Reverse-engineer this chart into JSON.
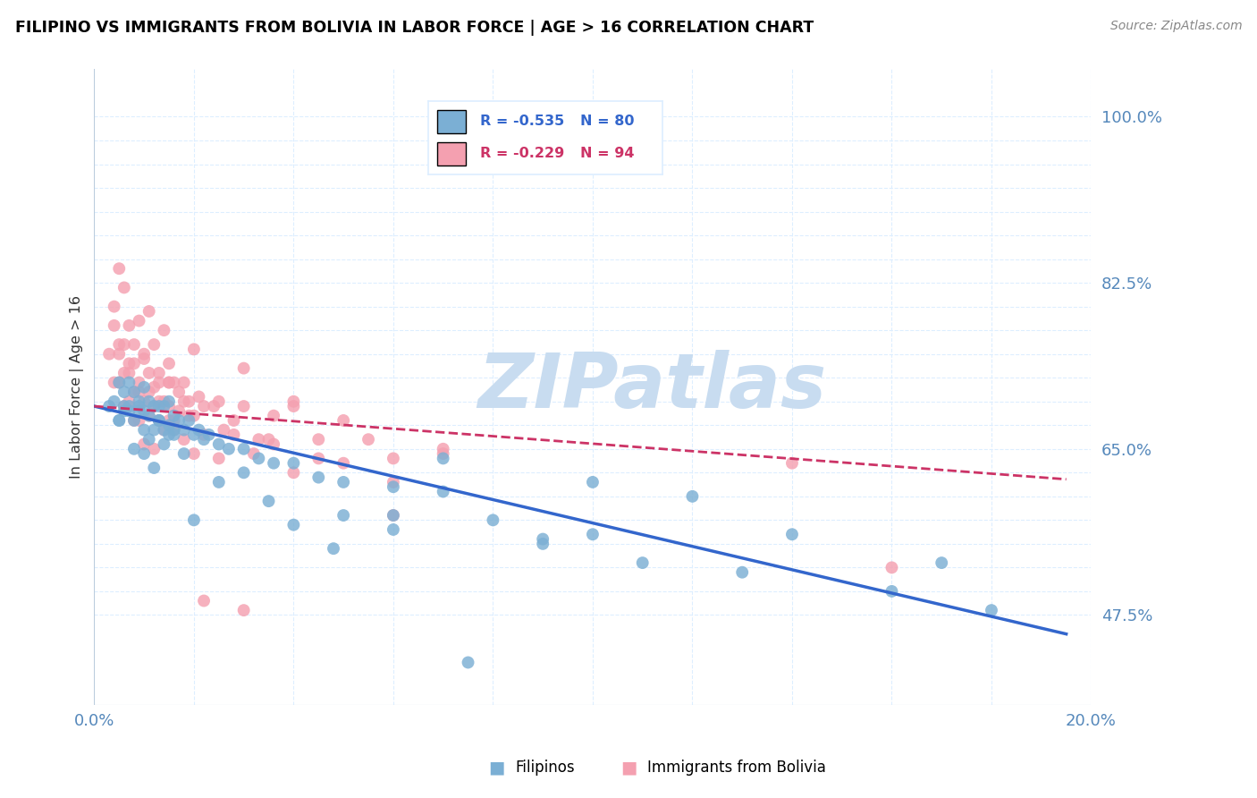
{
  "title": "FILIPINO VS IMMIGRANTS FROM BOLIVIA IN LABOR FORCE | AGE > 16 CORRELATION CHART",
  "source": "Source: ZipAtlas.com",
  "ylabel": "In Labor Force | Age > 16",
  "ylim": [
    0.38,
    1.05
  ],
  "xlim": [
    0.0,
    0.2
  ],
  "blue_color": "#7BAFD4",
  "pink_color": "#F4A0B0",
  "trendline_blue_color": "#3366CC",
  "trendline_pink_color": "#CC3366",
  "axis_label_color": "#5588BB",
  "grid_color": "#DDEEFF",
  "watermark_color": "#C8DCF0",
  "blue_scatter_x": [
    0.003,
    0.004,
    0.005,
    0.005,
    0.006,
    0.006,
    0.007,
    0.007,
    0.008,
    0.008,
    0.009,
    0.009,
    0.01,
    0.01,
    0.01,
    0.011,
    0.011,
    0.012,
    0.012,
    0.013,
    0.013,
    0.014,
    0.014,
    0.015,
    0.015,
    0.016,
    0.016,
    0.017,
    0.018,
    0.019,
    0.02,
    0.021,
    0.022,
    0.023,
    0.025,
    0.027,
    0.03,
    0.033,
    0.036,
    0.04,
    0.045,
    0.05,
    0.06,
    0.07,
    0.05,
    0.06,
    0.07,
    0.08,
    0.09,
    0.1,
    0.11,
    0.13,
    0.16,
    0.18,
    0.005,
    0.006,
    0.007,
    0.008,
    0.009,
    0.01,
    0.011,
    0.012,
    0.013,
    0.014,
    0.015,
    0.016,
    0.018,
    0.02,
    0.025,
    0.03,
    0.035,
    0.04,
    0.048,
    0.06,
    0.075,
    0.09,
    0.1,
    0.12,
    0.14,
    0.17
  ],
  "blue_scatter_y": [
    0.695,
    0.7,
    0.72,
    0.68,
    0.71,
    0.69,
    0.695,
    0.72,
    0.68,
    0.71,
    0.695,
    0.7,
    0.715,
    0.69,
    0.67,
    0.7,
    0.685,
    0.695,
    0.67,
    0.695,
    0.68,
    0.67,
    0.695,
    0.675,
    0.665,
    0.685,
    0.67,
    0.68,
    0.67,
    0.68,
    0.665,
    0.67,
    0.66,
    0.665,
    0.655,
    0.65,
    0.65,
    0.64,
    0.635,
    0.635,
    0.62,
    0.615,
    0.61,
    0.605,
    0.58,
    0.565,
    0.64,
    0.575,
    0.55,
    0.56,
    0.53,
    0.52,
    0.5,
    0.48,
    0.68,
    0.695,
    0.69,
    0.65,
    0.69,
    0.645,
    0.66,
    0.63,
    0.68,
    0.655,
    0.7,
    0.665,
    0.645,
    0.575,
    0.615,
    0.625,
    0.595,
    0.57,
    0.545,
    0.58,
    0.425,
    0.555,
    0.615,
    0.6,
    0.56,
    0.53
  ],
  "pink_scatter_x": [
    0.003,
    0.004,
    0.005,
    0.005,
    0.006,
    0.006,
    0.007,
    0.007,
    0.008,
    0.008,
    0.009,
    0.009,
    0.01,
    0.01,
    0.011,
    0.011,
    0.012,
    0.012,
    0.013,
    0.013,
    0.014,
    0.015,
    0.015,
    0.016,
    0.017,
    0.018,
    0.019,
    0.02,
    0.021,
    0.022,
    0.024,
    0.026,
    0.028,
    0.03,
    0.033,
    0.036,
    0.04,
    0.045,
    0.05,
    0.055,
    0.06,
    0.07,
    0.004,
    0.005,
    0.006,
    0.007,
    0.008,
    0.009,
    0.01,
    0.011,
    0.012,
    0.013,
    0.014,
    0.015,
    0.016,
    0.017,
    0.018,
    0.019,
    0.02,
    0.022,
    0.025,
    0.028,
    0.032,
    0.036,
    0.04,
    0.05,
    0.06,
    0.07,
    0.004,
    0.005,
    0.006,
    0.007,
    0.008,
    0.009,
    0.01,
    0.011,
    0.012,
    0.013,
    0.014,
    0.015,
    0.016,
    0.018,
    0.02,
    0.025,
    0.03,
    0.035,
    0.04,
    0.045,
    0.06,
    0.14,
    0.16,
    0.015,
    0.022,
    0.03
  ],
  "pink_scatter_y": [
    0.75,
    0.72,
    0.84,
    0.72,
    0.76,
    0.73,
    0.74,
    0.7,
    0.71,
    0.76,
    0.72,
    0.68,
    0.7,
    0.75,
    0.71,
    0.73,
    0.695,
    0.715,
    0.7,
    0.72,
    0.7,
    0.68,
    0.72,
    0.68,
    0.71,
    0.7,
    0.7,
    0.685,
    0.705,
    0.695,
    0.695,
    0.67,
    0.68,
    0.695,
    0.66,
    0.685,
    0.7,
    0.66,
    0.68,
    0.66,
    0.64,
    0.645,
    0.78,
    0.75,
    0.695,
    0.73,
    0.68,
    0.71,
    0.655,
    0.685,
    0.65,
    0.68,
    0.67,
    0.695,
    0.67,
    0.69,
    0.66,
    0.685,
    0.645,
    0.665,
    0.64,
    0.665,
    0.645,
    0.655,
    0.625,
    0.635,
    0.615,
    0.65,
    0.8,
    0.76,
    0.82,
    0.78,
    0.74,
    0.785,
    0.745,
    0.795,
    0.76,
    0.73,
    0.775,
    0.74,
    0.72,
    0.72,
    0.755,
    0.7,
    0.735,
    0.66,
    0.695,
    0.64,
    0.58,
    0.635,
    0.525,
    0.72,
    0.49,
    0.48
  ],
  "blue_trend_x": [
    0.0,
    0.195
  ],
  "blue_trend_y": [
    0.695,
    0.455
  ],
  "pink_trend_x": [
    0.0,
    0.195
  ],
  "pink_trend_y": [
    0.695,
    0.618
  ],
  "ytick_shown": [
    0.475,
    0.65,
    0.825,
    1.0
  ],
  "xtick_shown": [
    0.0,
    0.2
  ],
  "legend_items": [
    {
      "color": "#7BAFD4",
      "text_r": "R = -0.535",
      "text_n": "N = 80"
    },
    {
      "color": "#F4A0B0",
      "text_r": "R = -0.229",
      "text_n": "N = 94"
    }
  ],
  "bottom_legend": [
    {
      "color": "#7BAFD4",
      "label": "Filipinos"
    },
    {
      "color": "#F4A0B0",
      "label": "Immigrants from Bolivia"
    }
  ]
}
